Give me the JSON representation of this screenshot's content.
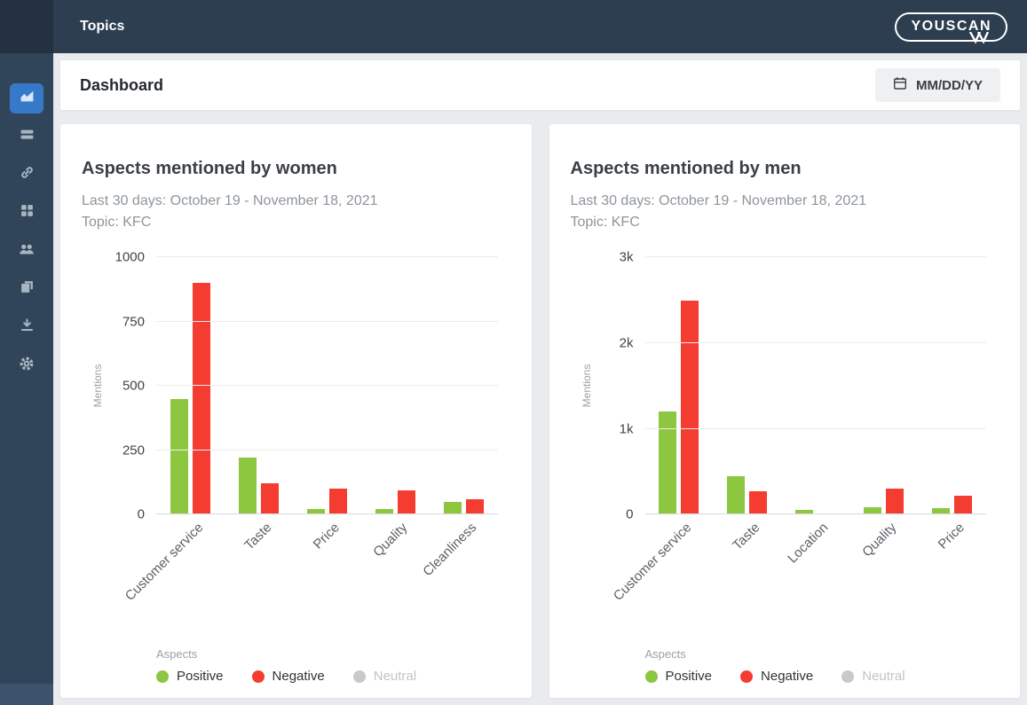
{
  "topbar": {
    "title": "Topics",
    "logo_text": "YOUSCAN"
  },
  "sidebar": {
    "items": [
      {
        "name": "analytics",
        "icon": "analytics-chart-icon",
        "active": true
      },
      {
        "name": "mentions",
        "icon": "mentions-feed-icon",
        "active": false
      },
      {
        "name": "sources",
        "icon": "link-icon",
        "active": false
      },
      {
        "name": "widgets",
        "icon": "widgets-grid-icon",
        "active": false
      },
      {
        "name": "audience",
        "icon": "people-icon",
        "active": false
      },
      {
        "name": "reports",
        "icon": "copy-pages-icon",
        "active": false
      },
      {
        "name": "export",
        "icon": "download-icon",
        "active": false
      },
      {
        "name": "settings",
        "icon": "gear-icon",
        "active": false
      }
    ]
  },
  "header": {
    "title": "Dashboard",
    "date_value": "MM/DD/YY"
  },
  "colors": {
    "positive": "#8dc63f",
    "negative": "#f43d30",
    "neutral": "#c9c9c9",
    "accent": "#3779c9",
    "topbar": "#2c3e50"
  },
  "legend": {
    "label": "Aspects",
    "items": [
      {
        "label": "Positive",
        "key": "positive",
        "muted": false
      },
      {
        "label": "Negative",
        "key": "negative",
        "muted": false
      },
      {
        "label": "Neutral",
        "key": "neutral",
        "muted": true
      }
    ]
  },
  "chart_data": [
    {
      "type": "bar",
      "title": "Aspects mentioned by women",
      "subtitle": "Last 30 days: October 19 - November 18, 2021",
      "topic_line": "Topic: KFC",
      "ylabel": "Mentions",
      "ylim": [
        0,
        1000
      ],
      "grid": true,
      "legend_position": "bottom",
      "yticks": [
        {
          "value": 0,
          "label": "0"
        },
        {
          "value": 250,
          "label": "250"
        },
        {
          "value": 500,
          "label": "500"
        },
        {
          "value": 750,
          "label": "750"
        },
        {
          "value": 1000,
          "label": "1000"
        }
      ],
      "categories": [
        "Customer service",
        "Taste",
        "Price",
        "Quality",
        "Cleanliness"
      ],
      "series": [
        {
          "name": "Positive",
          "color_key": "positive",
          "values": [
            450,
            220,
            20,
            20,
            50
          ]
        },
        {
          "name": "Negative",
          "color_key": "negative",
          "values": [
            900,
            120,
            100,
            95,
            60
          ]
        }
      ]
    },
    {
      "type": "bar",
      "title": "Aspects mentioned by men",
      "subtitle": "Last 30 days: October 19 - November 18, 2021",
      "topic_line": "Topic: KFC",
      "ylabel": "Mentions",
      "ylim": [
        0,
        3000
      ],
      "grid": true,
      "legend_position": "bottom",
      "yticks": [
        {
          "value": 0,
          "label": "0"
        },
        {
          "value": 1000,
          "label": "1k"
        },
        {
          "value": 2000,
          "label": "2k"
        },
        {
          "value": 3000,
          "label": "3k"
        }
      ],
      "categories": [
        "Customer service",
        "Taste",
        "Location",
        "Quality",
        "Price"
      ],
      "series": [
        {
          "name": "Positive",
          "color_key": "positive",
          "values": [
            1200,
            450,
            50,
            80,
            70
          ]
        },
        {
          "name": "Negative",
          "color_key": "negative",
          "values": [
            2500,
            270,
            0,
            300,
            220
          ]
        }
      ]
    }
  ]
}
